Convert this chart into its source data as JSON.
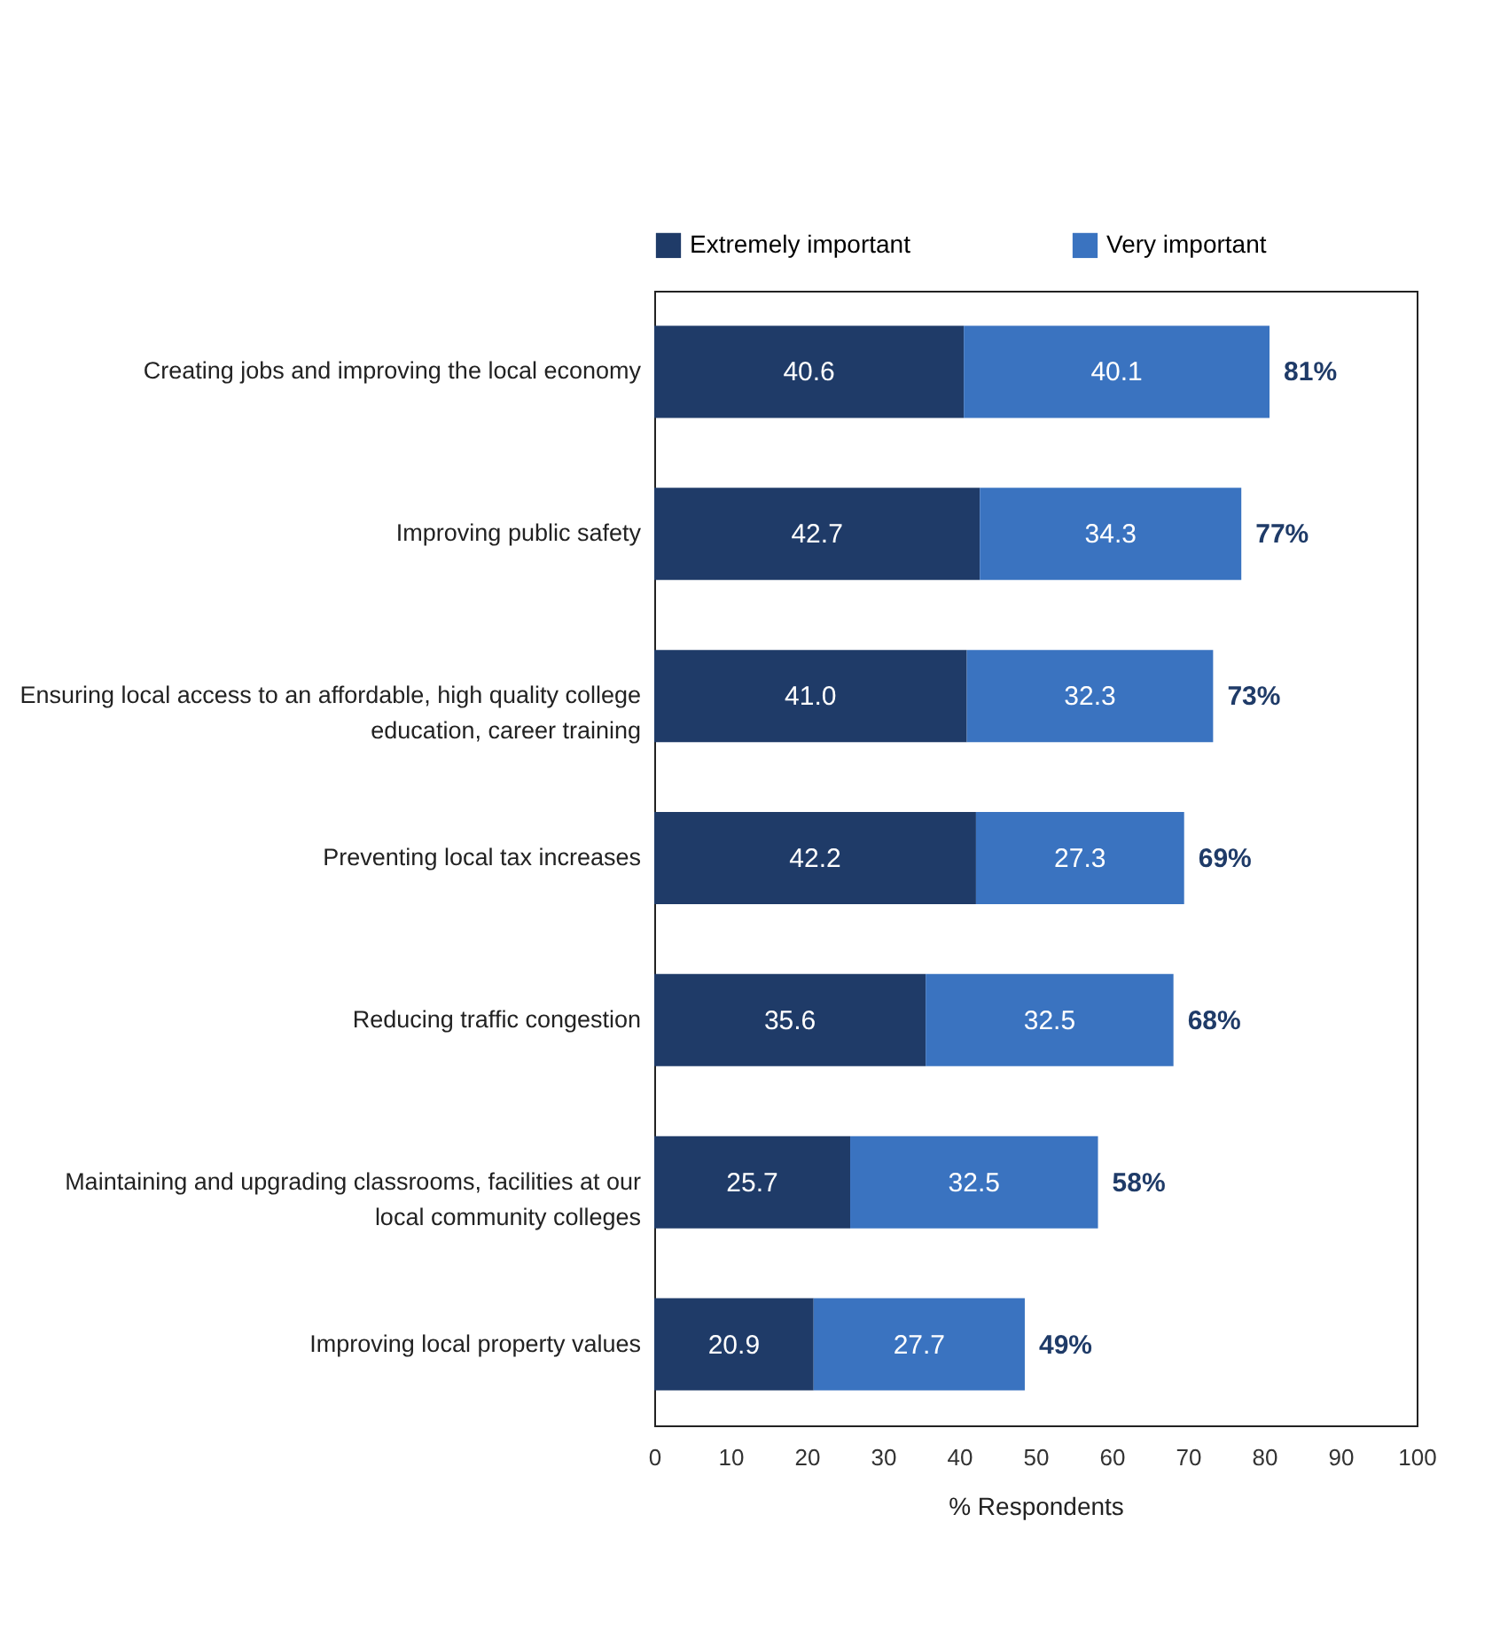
{
  "chart_data": {
    "type": "bar",
    "orientation": "horizontal",
    "stacked": true,
    "categories": [
      "Creating jobs and improving the local economy",
      "Improving public safety",
      "Ensuring local access to an affordable, high quality college education, career training",
      "Preventing local tax increases",
      "Reducing traffic congestion",
      "Maintaining and upgrading classrooms, facilities at our local community colleges",
      "Improving local property values"
    ],
    "series": [
      {
        "name": "Extremely important",
        "color": "#1f3b68",
        "values": [
          40.6,
          42.7,
          41.0,
          42.2,
          35.6,
          25.7,
          20.9
        ],
        "value_labels": [
          "40.6",
          "42.7",
          "41.0",
          "42.2",
          "35.6",
          "25.7",
          "20.9"
        ]
      },
      {
        "name": "Very important",
        "color": "#3a73c0",
        "values": [
          40.1,
          34.3,
          32.3,
          27.3,
          32.5,
          32.5,
          27.7
        ],
        "value_labels": [
          "40.1",
          "34.3",
          "32.3",
          "27.3",
          "32.5",
          "32.5",
          "27.7"
        ]
      }
    ],
    "totals": [
      "81%",
      "77%",
      "73%",
      "69%",
      "68%",
      "58%",
      "49%"
    ],
    "xlabel": "% Respondents",
    "xlim": [
      0,
      100
    ],
    "xticks": [
      0,
      10,
      20,
      30,
      40,
      50,
      60,
      70,
      80,
      90,
      100
    ],
    "grid": false,
    "legend": "top"
  }
}
